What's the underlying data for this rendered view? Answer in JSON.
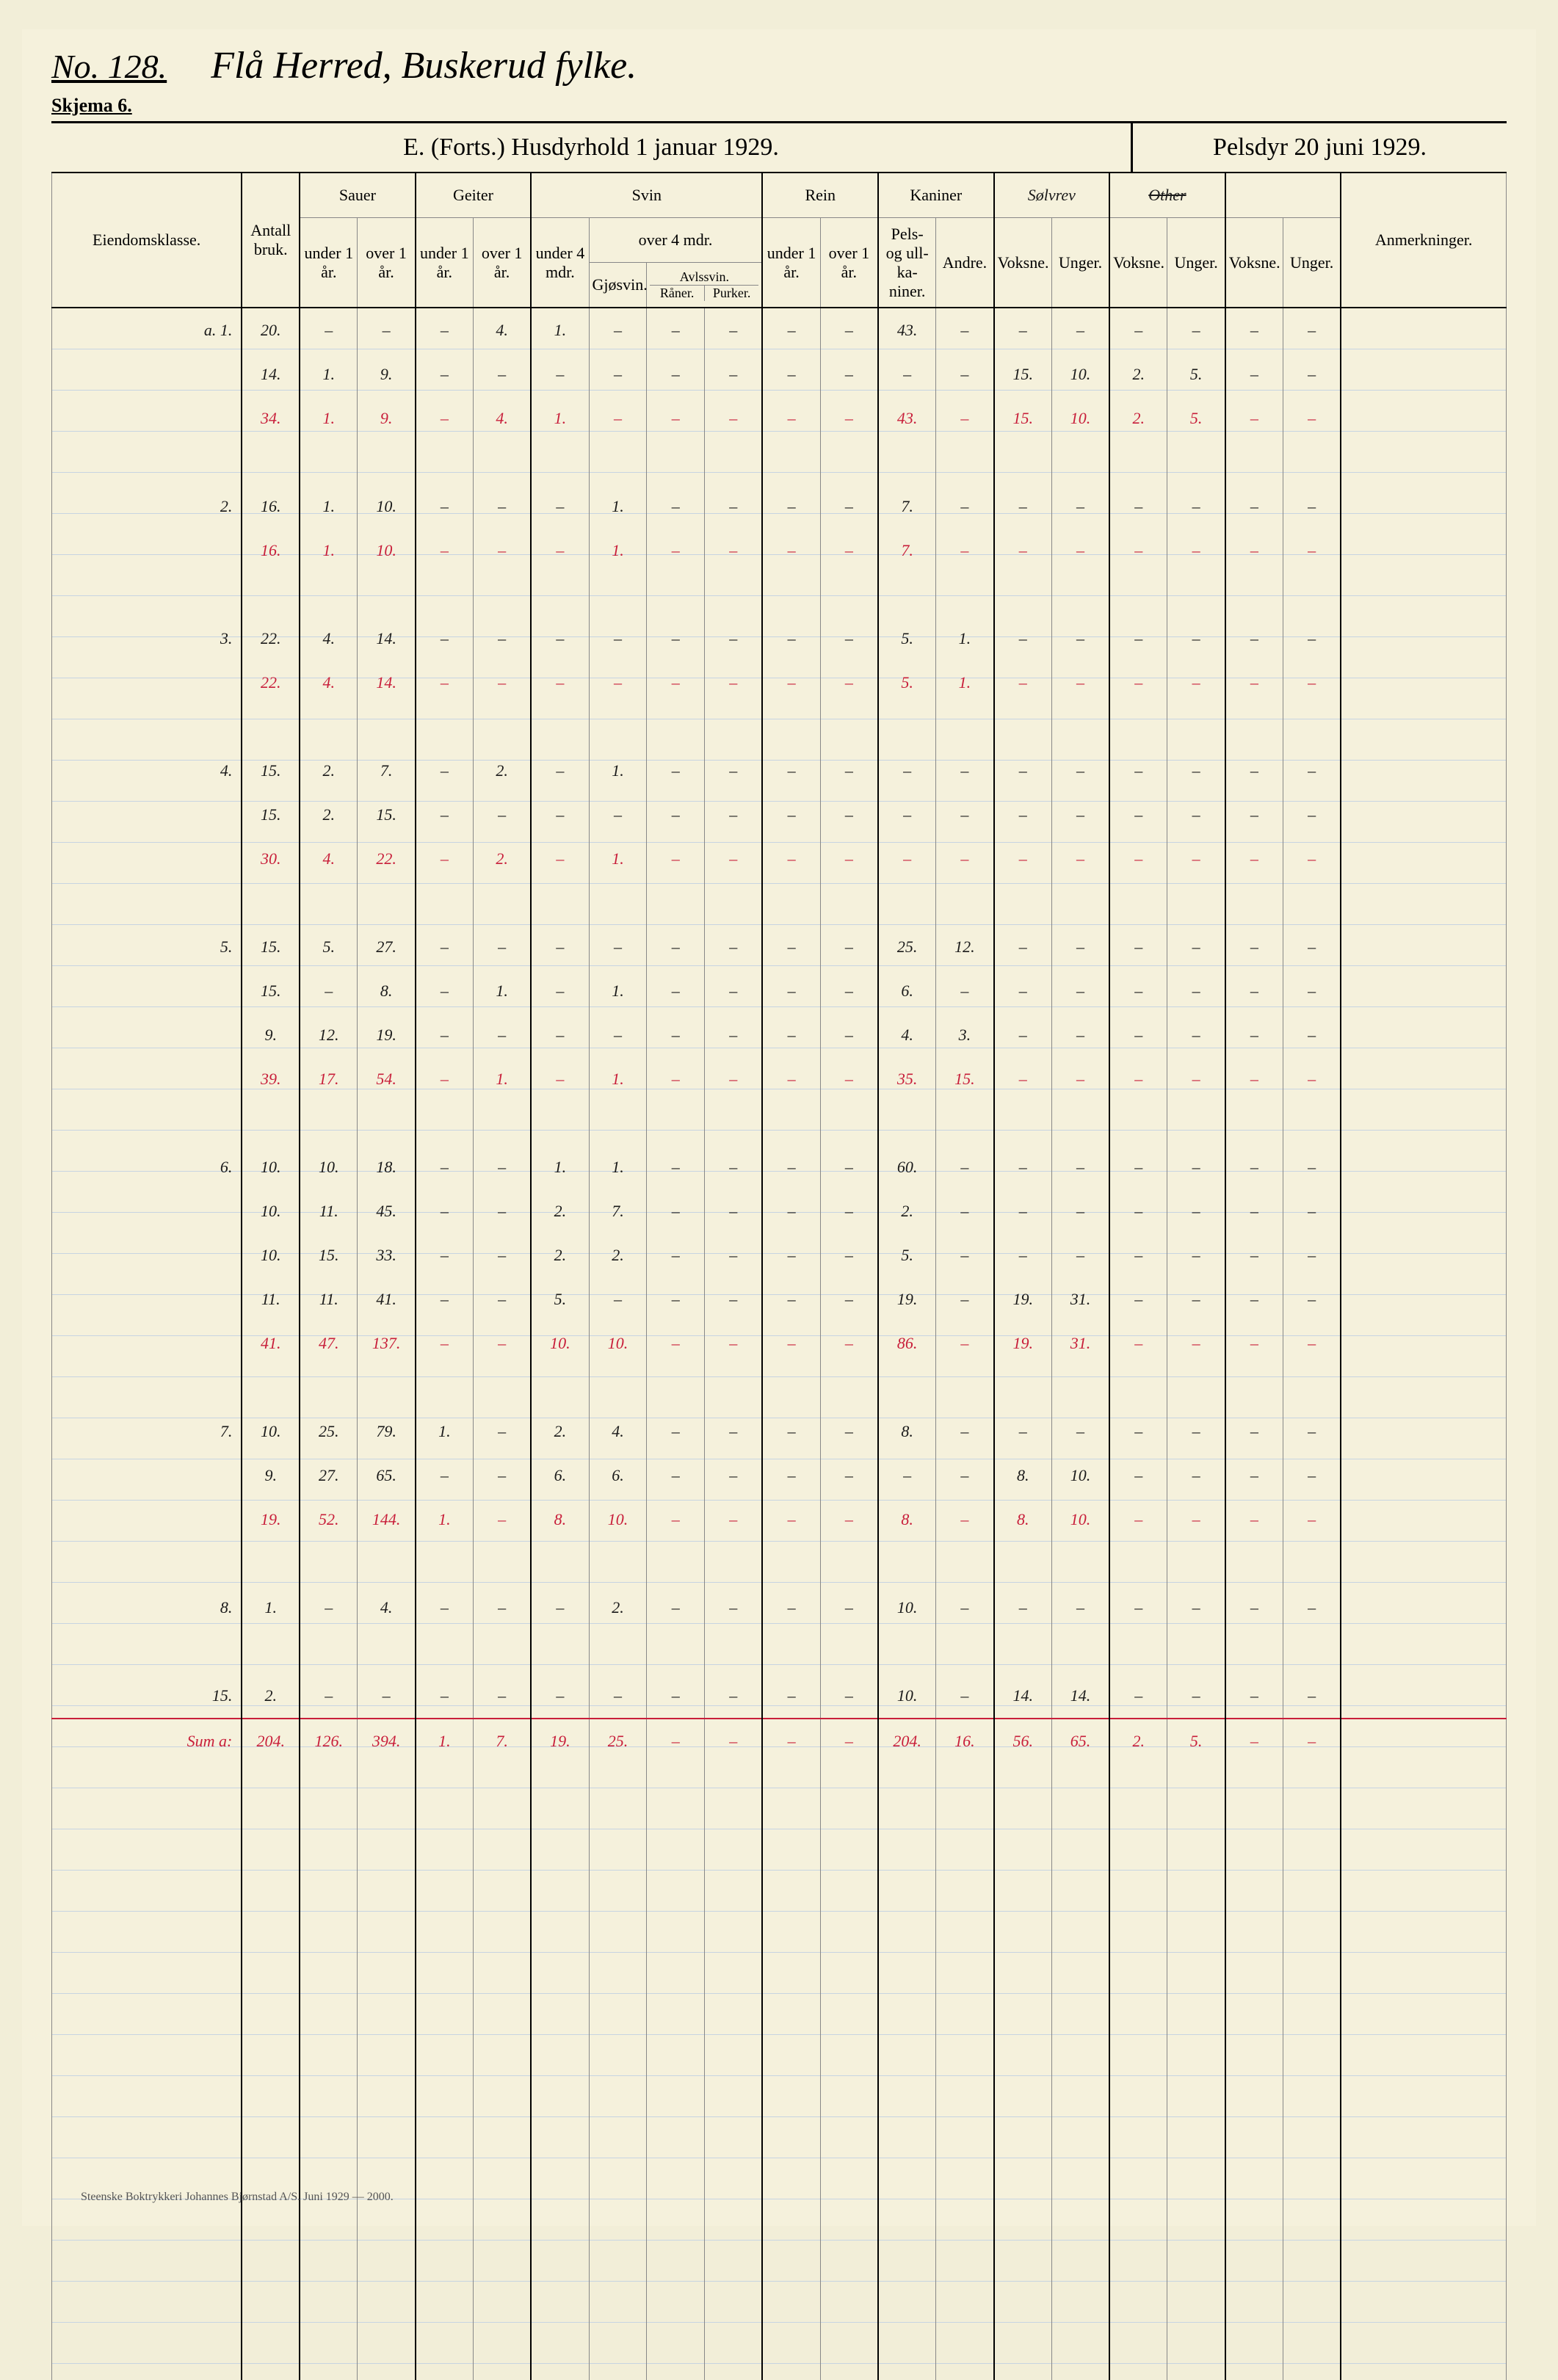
{
  "meta": {
    "no_label": "No. 128.",
    "handwriting_title": "Flå Herred, Buskerud fylke.",
    "skjema": "Skjema 6.",
    "header_left": "E. (Forts.)  Husdyrhold 1 januar 1929.",
    "header_right": "Pelsdyr 20 juni 1929.",
    "footer": "Steenske Boktrykkeri Johannes Bjørnstad A/S.   Juni 1929 — 2000."
  },
  "columns": {
    "eiendom": "Eiendomsklasse.",
    "antall": "Antall bruk.",
    "sauer": "Sauer",
    "sauer_u": "under 1 år.",
    "sauer_o": "over 1 år.",
    "geiter": "Geiter",
    "geiter_u": "under 1 år.",
    "geiter_o": "over 1 år.",
    "svin": "Svin",
    "svin_u4": "under 4 mdr.",
    "svin_o4": "over 4 mdr.",
    "gjosvin": "Gjøsvin.",
    "raner": "Råner.",
    "purker": "Purker.",
    "avlssvin": "Avlssvin.",
    "rein": "Rein",
    "rein_u": "under 1 år.",
    "rein_o": "over 1 år.",
    "kaniner": "Kaniner",
    "kan_pels": "Pels- og ull- ka- niner.",
    "kan_andre": "Andre.",
    "solvrev": "Sølvrev",
    "andre_pels": "Other",
    "voksne": "Voksne.",
    "unger": "Unger.",
    "anm": "Anmerkninger."
  },
  "rows": [
    {
      "label": "a. 1.",
      "c": [
        "20.",
        "–",
        "–",
        "–",
        "4.",
        "1.",
        "–",
        "–",
        "–",
        "–",
        "–",
        "43.",
        "–",
        "–",
        "–",
        "–",
        "–",
        "–",
        "–"
      ],
      "red": false
    },
    {
      "label": "",
      "c": [
        "14.",
        "1.",
        "9.",
        "–",
        "–",
        "–",
        "–",
        "–",
        "–",
        "–",
        "–",
        "–",
        "–",
        "15.",
        "10.",
        "2.",
        "5.",
        "–",
        "–"
      ],
      "red": false
    },
    {
      "label": "",
      "c": [
        "34.",
        "1.",
        "9.",
        "–",
        "4.",
        "1.",
        "–",
        "–",
        "–",
        "–",
        "–",
        "43.",
        "–",
        "15.",
        "10.",
        "2.",
        "5.",
        "–",
        "–"
      ],
      "red": true
    },
    {
      "label": "",
      "c": [
        "",
        "",
        "",
        "",
        "",
        "",
        "",
        "",
        "",
        "",
        "",
        "",
        "",
        "",
        "",
        "",
        "",
        "",
        ""
      ],
      "red": false
    },
    {
      "label": "2.",
      "c": [
        "16.",
        "1.",
        "10.",
        "–",
        "–",
        "–",
        "1.",
        "–",
        "–",
        "–",
        "–",
        "7.",
        "–",
        "–",
        "–",
        "–",
        "–",
        "–",
        "–"
      ],
      "red": false
    },
    {
      "label": "",
      "c": [
        "16.",
        "1.",
        "10.",
        "–",
        "–",
        "–",
        "1.",
        "–",
        "–",
        "–",
        "–",
        "7.",
        "–",
        "–",
        "–",
        "–",
        "–",
        "–",
        "–"
      ],
      "red": true
    },
    {
      "label": "",
      "c": [
        "",
        "",
        "",
        "",
        "",
        "",
        "",
        "",
        "",
        "",
        "",
        "",
        "",
        "",
        "",
        "",
        "",
        "",
        ""
      ],
      "red": false
    },
    {
      "label": "3.",
      "c": [
        "22.",
        "4.",
        "14.",
        "–",
        "–",
        "–",
        "–",
        "–",
        "–",
        "–",
        "–",
        "5.",
        "1.",
        "–",
        "–",
        "–",
        "–",
        "–",
        "–"
      ],
      "red": false
    },
    {
      "label": "",
      "c": [
        "22.",
        "4.",
        "14.",
        "–",
        "–",
        "–",
        "–",
        "–",
        "–",
        "–",
        "–",
        "5.",
        "1.",
        "–",
        "–",
        "–",
        "–",
        "–",
        "–"
      ],
      "red": true
    },
    {
      "label": "",
      "c": [
        "",
        "",
        "",
        "",
        "",
        "",
        "",
        "",
        "",
        "",
        "",
        "",
        "",
        "",
        "",
        "",
        "",
        "",
        ""
      ],
      "red": false
    },
    {
      "label": "4.",
      "c": [
        "15.",
        "2.",
        "7.",
        "–",
        "2.",
        "–",
        "1.",
        "–",
        "–",
        "–",
        "–",
        "–",
        "–",
        "–",
        "–",
        "–",
        "–",
        "–",
        "–"
      ],
      "red": false
    },
    {
      "label": "",
      "c": [
        "15.",
        "2.",
        "15.",
        "–",
        "–",
        "–",
        "–",
        "–",
        "–",
        "–",
        "–",
        "–",
        "–",
        "–",
        "–",
        "–",
        "–",
        "–",
        "–"
      ],
      "red": false
    },
    {
      "label": "",
      "c": [
        "30.",
        "4.",
        "22.",
        "–",
        "2.",
        "–",
        "1.",
        "–",
        "–",
        "–",
        "–",
        "–",
        "–",
        "–",
        "–",
        "–",
        "–",
        "–",
        "–"
      ],
      "red": true
    },
    {
      "label": "",
      "c": [
        "",
        "",
        "",
        "",
        "",
        "",
        "",
        "",
        "",
        "",
        "",
        "",
        "",
        "",
        "",
        "",
        "",
        "",
        ""
      ],
      "red": false
    },
    {
      "label": "5.",
      "c": [
        "15.",
        "5.",
        "27.",
        "–",
        "–",
        "–",
        "–",
        "–",
        "–",
        "–",
        "–",
        "25.",
        "12.",
        "–",
        "–",
        "–",
        "–",
        "–",
        "–"
      ],
      "red": false
    },
    {
      "label": "",
      "c": [
        "15.",
        "–",
        "8.",
        "–",
        "1.",
        "–",
        "1.",
        "–",
        "–",
        "–",
        "–",
        "6.",
        "–",
        "–",
        "–",
        "–",
        "–",
        "–",
        "–"
      ],
      "red": false
    },
    {
      "label": "",
      "c": [
        "9.",
        "12.",
        "19.",
        "–",
        "–",
        "–",
        "–",
        "–",
        "–",
        "–",
        "–",
        "4.",
        "3.",
        "–",
        "–",
        "–",
        "–",
        "–",
        "–"
      ],
      "red": false
    },
    {
      "label": "",
      "c": [
        "39.",
        "17.",
        "54.",
        "–",
        "1.",
        "–",
        "1.",
        "–",
        "–",
        "–",
        "–",
        "35.",
        "15.",
        "–",
        "–",
        "–",
        "–",
        "–",
        "–"
      ],
      "red": true
    },
    {
      "label": "",
      "c": [
        "",
        "",
        "",
        "",
        "",
        "",
        "",
        "",
        "",
        "",
        "",
        "",
        "",
        "",
        "",
        "",
        "",
        "",
        ""
      ],
      "red": false
    },
    {
      "label": "6.",
      "c": [
        "10.",
        "10.",
        "18.",
        "–",
        "–",
        "1.",
        "1.",
        "–",
        "–",
        "–",
        "–",
        "60.",
        "–",
        "–",
        "–",
        "–",
        "–",
        "–",
        "–"
      ],
      "red": false
    },
    {
      "label": "",
      "c": [
        "10.",
        "11.",
        "45.",
        "–",
        "–",
        "2.",
        "7.",
        "–",
        "–",
        "–",
        "–",
        "2.",
        "–",
        "–",
        "–",
        "–",
        "–",
        "–",
        "–"
      ],
      "red": false
    },
    {
      "label": "",
      "c": [
        "10.",
        "15.",
        "33.",
        "–",
        "–",
        "2.",
        "2.",
        "–",
        "–",
        "–",
        "–",
        "5.",
        "–",
        "–",
        "–",
        "–",
        "–",
        "–",
        "–"
      ],
      "red": false
    },
    {
      "label": "",
      "c": [
        "11.",
        "11.",
        "41.",
        "–",
        "–",
        "5.",
        "–",
        "–",
        "–",
        "–",
        "–",
        "19.",
        "–",
        "19.",
        "31.",
        "–",
        "–",
        "–",
        "–"
      ],
      "red": false
    },
    {
      "label": "",
      "c": [
        "41.",
        "47.",
        "137.",
        "–",
        "–",
        "10.",
        "10.",
        "–",
        "–",
        "–",
        "–",
        "86.",
        "–",
        "19.",
        "31.",
        "–",
        "–",
        "–",
        "–"
      ],
      "red": true
    },
    {
      "label": "",
      "c": [
        "",
        "",
        "",
        "",
        "",
        "",
        "",
        "",
        "",
        "",
        "",
        "",
        "",
        "",
        "",
        "",
        "",
        "",
        ""
      ],
      "red": false
    },
    {
      "label": "7.",
      "c": [
        "10.",
        "25.",
        "79.",
        "1.",
        "–",
        "2.",
        "4.",
        "–",
        "–",
        "–",
        "–",
        "8.",
        "–",
        "–",
        "–",
        "–",
        "–",
        "–",
        "–"
      ],
      "red": false
    },
    {
      "label": "",
      "c": [
        "9.",
        "27.",
        "65.",
        "–",
        "–",
        "6.",
        "6.",
        "–",
        "–",
        "–",
        "–",
        "–",
        "–",
        "8.",
        "10.",
        "–",
        "–",
        "–",
        "–"
      ],
      "red": false
    },
    {
      "label": "",
      "c": [
        "19.",
        "52.",
        "144.",
        "1.",
        "–",
        "8.",
        "10.",
        "–",
        "–",
        "–",
        "–",
        "8.",
        "–",
        "8.",
        "10.",
        "–",
        "–",
        "–",
        "–"
      ],
      "red": true
    },
    {
      "label": "",
      "c": [
        "",
        "",
        "",
        "",
        "",
        "",
        "",
        "",
        "",
        "",
        "",
        "",
        "",
        "",
        "",
        "",
        "",
        "",
        ""
      ],
      "red": false
    },
    {
      "label": "8.",
      "c": [
        "1.",
        "–",
        "4.",
        "–",
        "–",
        "–",
        "2.",
        "–",
        "–",
        "–",
        "–",
        "10.",
        "–",
        "–",
        "–",
        "–",
        "–",
        "–",
        "–"
      ],
      "red": false
    },
    {
      "label": "",
      "c": [
        "",
        "",
        "",
        "",
        "",
        "",
        "",
        "",
        "",
        "",
        "",
        "",
        "",
        "",
        "",
        "",
        "",
        "",
        ""
      ],
      "red": false
    },
    {
      "label": "15.",
      "c": [
        "2.",
        "–",
        "–",
        "–",
        "–",
        "–",
        "–",
        "–",
        "–",
        "–",
        "–",
        "10.",
        "–",
        "14.",
        "14.",
        "–",
        "–",
        "–",
        "–"
      ],
      "red": false
    }
  ],
  "sum": {
    "label": "Sum a:",
    "c": [
      "204.",
      "126.",
      "394.",
      "1.",
      "7.",
      "19.",
      "25.",
      "–",
      "–",
      "–",
      "–",
      "204.",
      "16.",
      "56.",
      "65.",
      "2.",
      "5.",
      "–",
      "–"
    ]
  }
}
